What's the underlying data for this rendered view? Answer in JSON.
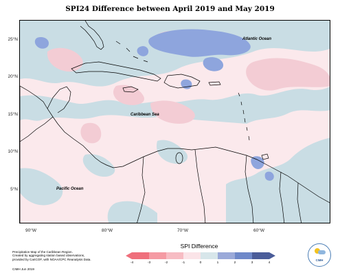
{
  "title": "SPI24 Difference between April 2019 and May 2019",
  "map": {
    "lat_labels": [
      "25°N",
      "20°N",
      "15°N",
      "10°N",
      "5°N"
    ],
    "lon_labels": [
      "90°W",
      "80°W",
      "70°W",
      "60°W"
    ],
    "ocean_labels": {
      "atlantic": "Atlantic Ocean",
      "caribbean": "Caribbean Sea",
      "pacific": "Pacific Ocean"
    },
    "colors": {
      "neutral_light": "#fbe9ec",
      "light_blue": "#c9dde4",
      "mid_blue": "#8ea5dd",
      "light_pink": "#f3ccd4",
      "land_outline": "#000000"
    }
  },
  "footer": {
    "lines": [
      "Precipitation Map of the Caribbean Region.",
      "Created by aggregating station based observations,",
      "provided by CariCOF, with NOAA/CPC Reanalysis Data."
    ],
    "credit": "CIMH Jun 2019"
  },
  "legend": {
    "title": "SPI Difference",
    "ticks": [
      "-4",
      "-3",
      "-2",
      "-1",
      "0",
      "1",
      "2",
      "3",
      "4"
    ],
    "colors": [
      "#ef6f7c",
      "#f59aa3",
      "#f7bcc3",
      "#fbe4e8",
      "#d7e6ea",
      "#9aa9d9",
      "#6e88c9",
      "#4a5c99"
    ]
  },
  "logo": {
    "text": "CIMH"
  }
}
